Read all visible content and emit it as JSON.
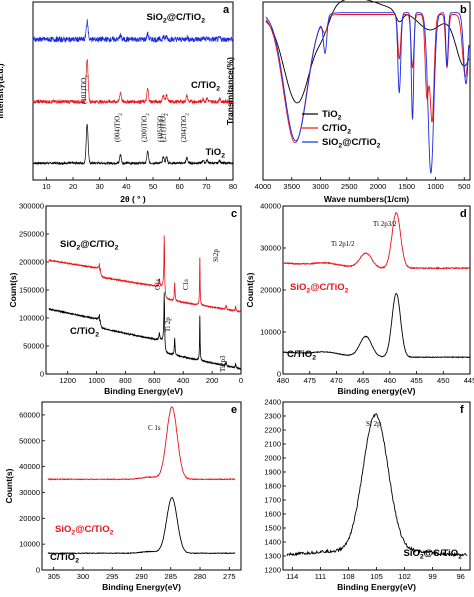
{
  "colors": {
    "black": "#000000",
    "red": "#e8141c",
    "blue": "#1a2adf"
  },
  "chart_data": [
    {
      "panel": "a",
      "type": "line",
      "xlabel": "2θ ( ° )",
      "ylabel": "Intensity(a.u.)",
      "xlim": [
        5,
        80
      ],
      "xticks": [
        "10",
        "20",
        "30",
        "40",
        "50",
        "60",
        "70",
        "80"
      ],
      "series_labels": [
        "SiO2@C/TiO2",
        "C/TiO2",
        "TiO2"
      ],
      "peak_labels": [
        "(101)TiO2",
        "(004)TiO2",
        "(200)TiO2",
        "(105)TiO2",
        "(211)TiO2",
        "(204)TiO2"
      ],
      "peaks_2theta": [
        25.3,
        37.8,
        48.0,
        53.9,
        55.1,
        62.7,
        68.8,
        70.3,
        75.0
      ]
    },
    {
      "panel": "b",
      "type": "line",
      "xlabel": "Wave numbers(1/cm)",
      "ylabel": "Transmitance(%)",
      "xlim": [
        4000,
        400
      ],
      "xticks": [
        "4000",
        "3500",
        "3000",
        "2500",
        "2000",
        "1500",
        "1000",
        "500"
      ],
      "legend": [
        "TiO2",
        "C/TiO2",
        "SiO2@C/TiO2"
      ],
      "legend_position": "bottom-left",
      "bands_cm": [
        3400,
        1630,
        1400,
        1080,
        800,
        470
      ]
    },
    {
      "panel": "c",
      "type": "line",
      "xlabel": "Binding Energy(eV)",
      "ylabel": "Count(s)",
      "xlim": [
        1350,
        0
      ],
      "ylim": [
        0,
        300000
      ],
      "yticks": [
        "0",
        "50000",
        "100000",
        "150000",
        "200000",
        "250000",
        "300000"
      ],
      "xticks": [
        "1200",
        "1000",
        "800",
        "600",
        "400",
        "200",
        "0"
      ],
      "series_labels": [
        "SiO2@C/TiO2",
        "C/TiO2"
      ],
      "peak_labels": [
        "O1s",
        "Ti 2p",
        "C1s",
        "Si2p",
        "Ti2p3"
      ],
      "peaks_eV": [
        531,
        459,
        285,
        103,
        37
      ]
    },
    {
      "panel": "d",
      "type": "line",
      "xlabel": "Binding energy(eV)",
      "ylabel": "Count(s)",
      "xlim": [
        480,
        445
      ],
      "ylim": [
        0,
        40000
      ],
      "yticks": [
        "0",
        "10000",
        "20000",
        "30000",
        "40000"
      ],
      "xticks": [
        "480",
        "475",
        "470",
        "465",
        "460",
        "455",
        "450",
        "445"
      ],
      "series_labels": [
        "SiO2@C/TiO2",
        "C/TiO2"
      ],
      "peak_labels": [
        "Ti 2p1/2",
        "Ti 2p3/2"
      ],
      "peaks_eV": [
        464.6,
        458.8
      ]
    },
    {
      "panel": "e",
      "type": "line",
      "xlabel": "Binding Energy(eV)",
      "ylabel": "Count(s)",
      "xlim": [
        307,
        273
      ],
      "ylim": [
        0,
        65000
      ],
      "yticks": [
        "0",
        "10000",
        "20000",
        "30000",
        "40000",
        "50000",
        "60000"
      ],
      "xticks": [
        "305",
        "300",
        "295",
        "290",
        "285",
        "280",
        "275"
      ],
      "series_labels": [
        "SiO2@C/TiO2",
        "C/TiO2"
      ],
      "peak_labels": [
        "C 1s"
      ],
      "peaks_eV": [
        284.8
      ]
    },
    {
      "panel": "f",
      "type": "line",
      "xlabel": "Binding Energy(eV)",
      "ylabel": "Count(s)",
      "xlim": [
        115,
        95
      ],
      "ylim": [
        1200,
        2400
      ],
      "yticks": [
        "1200",
        "1300",
        "1400",
        "1500",
        "1600",
        "1700",
        "1800",
        "1900",
        "2000",
        "2100",
        "2200",
        "2300",
        "2400"
      ],
      "xticks": [
        "114",
        "111",
        "108",
        "105",
        "102",
        "99",
        "96"
      ],
      "series_labels": [
        "SiO2@C/TiO2"
      ],
      "peak_labels": [
        "Si 2p"
      ],
      "peaks_eV": [
        103.5
      ]
    }
  ]
}
